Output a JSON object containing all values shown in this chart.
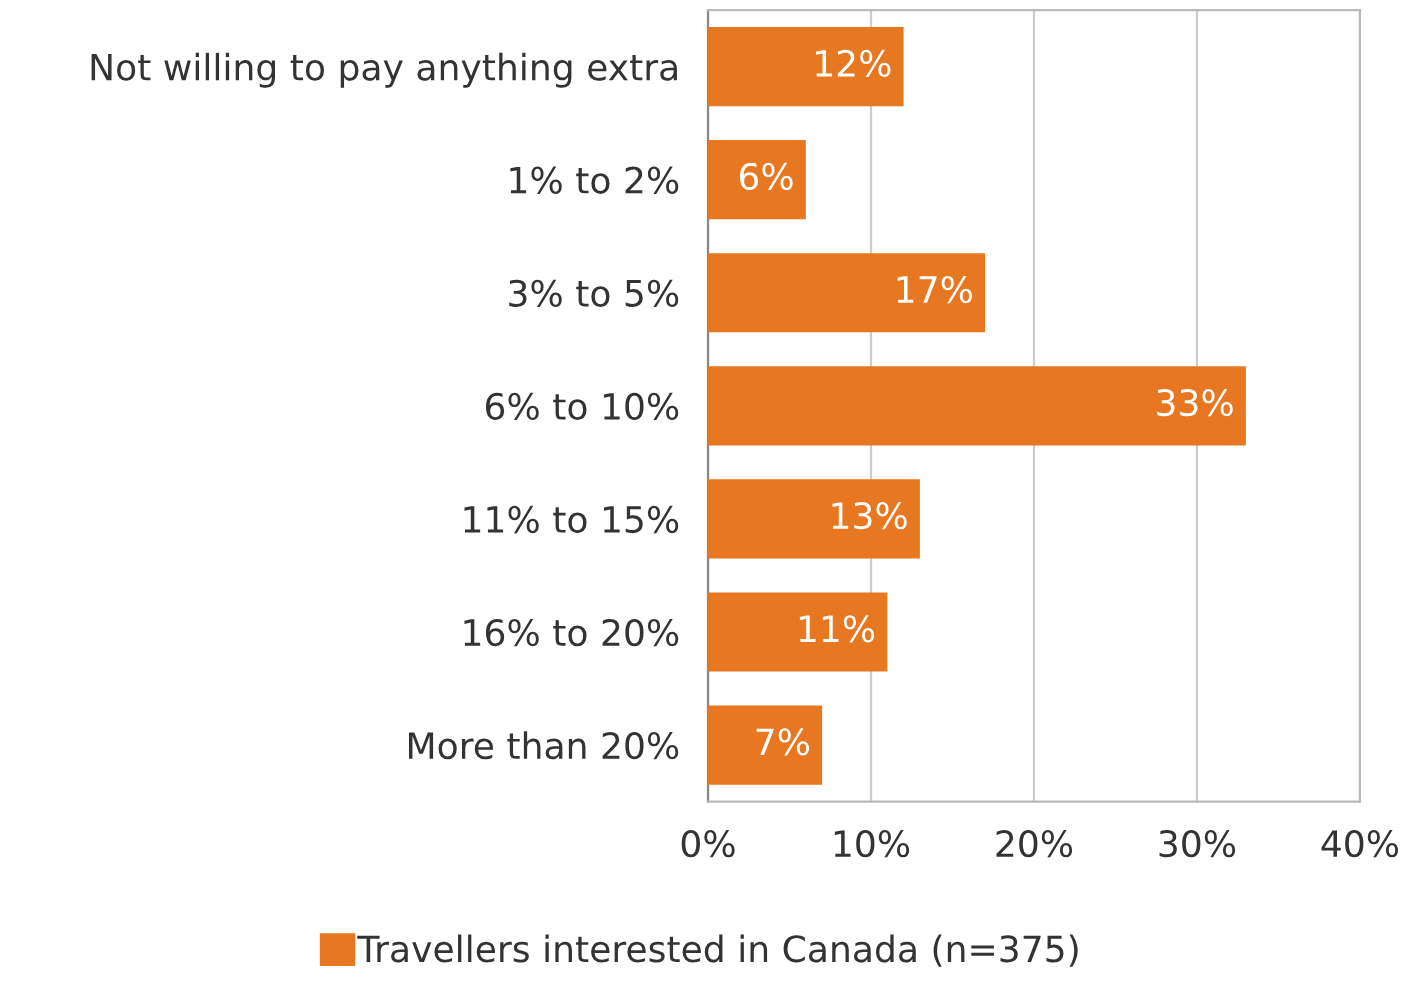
{
  "chart_data": {
    "type": "bar",
    "orientation": "horizontal",
    "categories": [
      "Not willing to pay anything extra",
      "1% to 2%",
      "3% to 5%",
      "6% to 10%",
      "11% to 15%",
      "16% to 20%",
      "More than 20%"
    ],
    "series": [
      {
        "name": "Travellers interested in Canada (n=375)",
        "color": "#e87722",
        "values": [
          12,
          6,
          17,
          33,
          13,
          11,
          7
        ],
        "value_labels": [
          "12%",
          "6%",
          "17%",
          "33%",
          "13%",
          "11%",
          "7%"
        ]
      }
    ],
    "xlim": [
      0,
      40
    ],
    "xticks": [
      {
        "value": 0,
        "label": "0%"
      },
      {
        "value": 10,
        "label": "10%"
      },
      {
        "value": 20,
        "label": "20%"
      },
      {
        "value": 30,
        "label": "30%"
      },
      {
        "value": 40,
        "label": "40%"
      }
    ],
    "grid": "x",
    "legend": "bottom"
  }
}
